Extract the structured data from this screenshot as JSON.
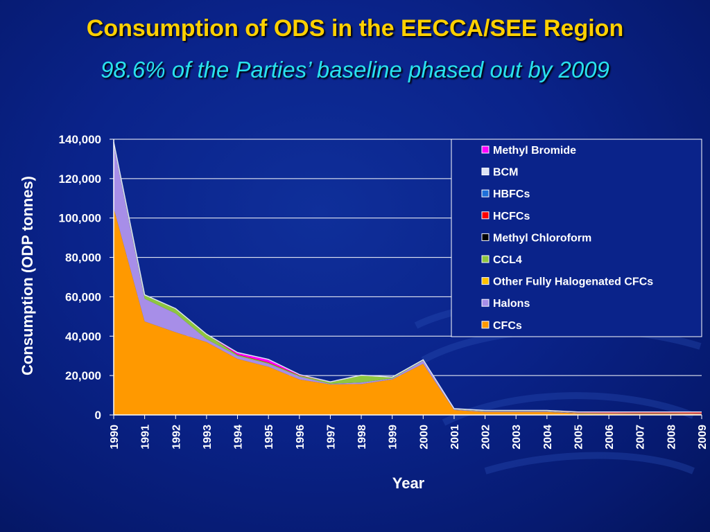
{
  "title": "Consumption of ODS in the EECCA/SEE Region",
  "subtitle": "98.6% of the Parties’ baseline phased out by 2009",
  "chart_data": {
    "type": "area",
    "stacked": true,
    "xlabel": "Year",
    "ylabel": "Consumption (ODP tonnes)",
    "ylim": [
      0,
      140000
    ],
    "yticks": [
      "0",
      "20,000",
      "40,000",
      "60,000",
      "80,000",
      "100,000",
      "120,000",
      "140,000"
    ],
    "grid": true,
    "legend_position": "top-right",
    "categories": [
      "1990",
      "1991",
      "1992",
      "1993",
      "1994",
      "1995",
      "1996",
      "1997",
      "1998",
      "1999",
      "2000",
      "2001",
      "2002",
      "2003",
      "2004",
      "2005",
      "2006",
      "2007",
      "2008",
      "2009"
    ],
    "series": [
      {
        "name": "CFCs",
        "color": "#ff9900",
        "values": [
          105000,
          47500,
          42000,
          37000,
          28500,
          24500,
          18000,
          15500,
          15700,
          18000,
          26000,
          2500,
          1500,
          1500,
          1500,
          800,
          700,
          600,
          600,
          500
        ]
      },
      {
        "name": "Halons",
        "color": "#a78ee8",
        "values": [
          32000,
          11500,
          9500,
          1500,
          1500,
          1500,
          1500,
          300,
          800,
          500,
          1500,
          300,
          300,
          300,
          300,
          200,
          200,
          200,
          200,
          200
        ]
      },
      {
        "name": "Other Fully Halogenated CFCs",
        "color": "#ffc000",
        "values": [
          0,
          0,
          0,
          0,
          0,
          0,
          0,
          0,
          0,
          0,
          0,
          0,
          0,
          0,
          0,
          0,
          0,
          0,
          0,
          0
        ]
      },
      {
        "name": "CCL4",
        "color": "#8ec63f",
        "values": [
          1500,
          2000,
          2500,
          2500,
          500,
          500,
          500,
          800,
          3500,
          500,
          300,
          200,
          200,
          200,
          200,
          100,
          100,
          100,
          100,
          100
        ]
      },
      {
        "name": "Methyl Chloroform",
        "color": "#000000",
        "values": [
          0,
          0,
          0,
          0,
          0,
          0,
          0,
          0,
          0,
          0,
          0,
          0,
          0,
          0,
          0,
          0,
          0,
          0,
          0,
          0
        ]
      },
      {
        "name": "HCFCs",
        "color": "#ff0000",
        "values": [
          0,
          0,
          0,
          0,
          200,
          200,
          200,
          200,
          200,
          200,
          200,
          200,
          300,
          300,
          300,
          400,
          500,
          600,
          600,
          700
        ]
      },
      {
        "name": "HBFCs",
        "color": "#1e6fd9",
        "values": [
          0,
          0,
          0,
          0,
          0,
          0,
          0,
          0,
          0,
          0,
          0,
          0,
          0,
          0,
          0,
          0,
          0,
          0,
          0,
          0
        ]
      },
      {
        "name": "BCM",
        "color": "#dde3f5",
        "values": [
          0,
          0,
          0,
          0,
          0,
          0,
          0,
          0,
          0,
          0,
          0,
          0,
          0,
          0,
          0,
          0,
          0,
          0,
          0,
          0
        ]
      },
      {
        "name": "Methyl Bromide",
        "color": "#ff00ff",
        "values": [
          0,
          0,
          0,
          0,
          1000,
          1500,
          300,
          0,
          0,
          0,
          0,
          0,
          0,
          0,
          0,
          0,
          0,
          0,
          0,
          0
        ]
      }
    ],
    "legend_order": [
      "Methyl Bromide",
      "BCM",
      "HBFCs",
      "HCFCs",
      "Methyl Chloroform",
      "CCL4",
      "Other Fully Halogenated CFCs",
      "Halons",
      "CFCs"
    ]
  }
}
